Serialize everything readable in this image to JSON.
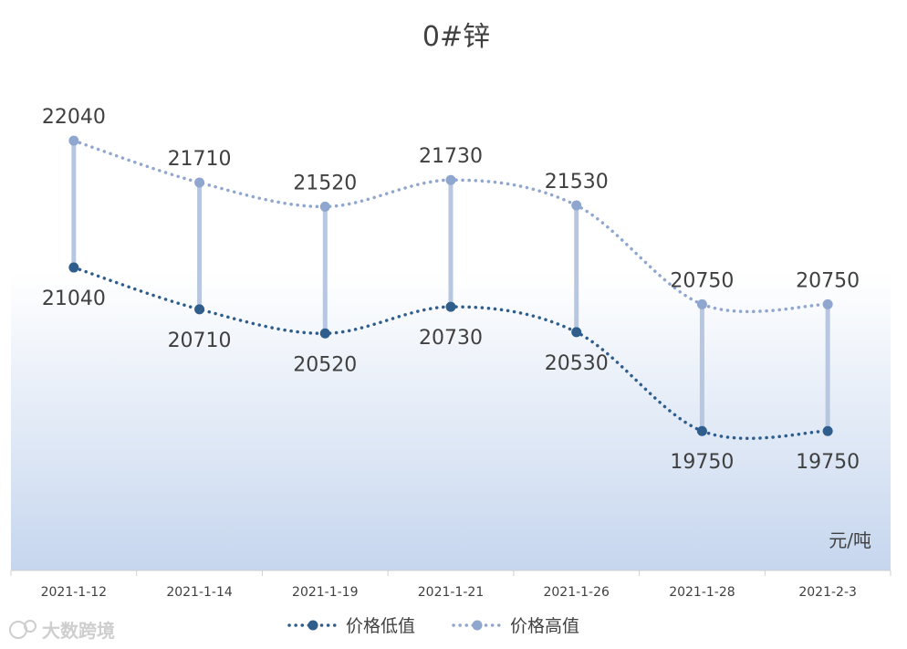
{
  "chart_data": {
    "type": "line",
    "title": "0#锌",
    "unit_label": "元/吨",
    "categories": [
      "2021-1-12",
      "2021-1-14",
      "2021-1-19",
      "2021-1-21",
      "2021-1-26",
      "2021-1-28",
      "2021-2-3"
    ],
    "series": [
      {
        "name": "价格低值",
        "values": [
          21040,
          20710,
          20520,
          20730,
          20530,
          19750,
          19750
        ],
        "color": "#2f5d8c"
      },
      {
        "name": "价格高值",
        "values": [
          22040,
          21710,
          21520,
          21730,
          21530,
          20750,
          20750
        ],
        "color": "#8fa6cf"
      }
    ],
    "ylim": [
      18650,
      23150
    ],
    "high_low_lines": true,
    "high_low_line_color": "#b7c7e1",
    "legend_position": "bottom",
    "grid": false,
    "background_gradient": [
      "#ffffff",
      "#c6d6ee"
    ]
  },
  "watermark": "大数跨境"
}
